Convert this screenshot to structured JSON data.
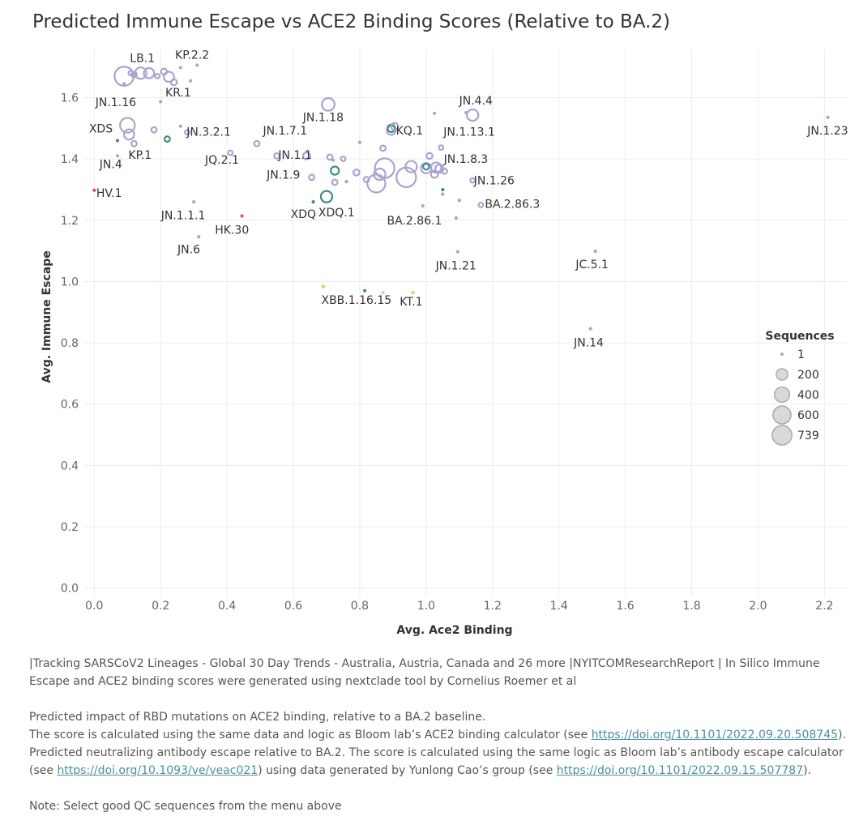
{
  "chart_data": {
    "type": "scatter",
    "title": "Predicted Immune Escape vs ACE2 Binding Scores (Relative to BA.2)",
    "xlabel": "Avg. Ace2 Binding",
    "ylabel": "Avg. Immune Escape",
    "xlim": [
      -0.03,
      2.27
    ],
    "ylim": [
      -0.03,
      1.76
    ],
    "xticks": [
      "0.0",
      "0.2",
      "0.4",
      "0.6",
      "0.8",
      "1.0",
      "1.2",
      "1.4",
      "1.6",
      "1.8",
      "2.0",
      "2.2"
    ],
    "xtick_values": [
      0,
      0.2,
      0.4,
      0.6,
      0.8,
      1.0,
      1.2,
      1.4,
      1.6,
      1.8,
      2.0,
      2.2
    ],
    "yticks": [
      "0.0",
      "0.2",
      "0.4",
      "0.6",
      "0.8",
      "1.0",
      "1.2",
      "1.4",
      "1.6"
    ],
    "ytick_values": [
      0,
      0.2,
      0.4,
      0.6,
      0.8,
      1.0,
      1.2,
      1.4,
      1.6
    ],
    "grid": true,
    "colors": {
      "default": "#a9a3d6",
      "teal": "#3f8f7f",
      "red": "#d05a4e",
      "yellow": "#f2c94c",
      "pink": "#f4b6c2"
    },
    "size_legend": {
      "title": "Sequences",
      "placement": "right",
      "entries": [
        {
          "label": "1",
          "value": 1
        },
        {
          "label": "200",
          "value": 200
        },
        {
          "label": "400",
          "value": 400
        },
        {
          "label": "600",
          "value": 600
        },
        {
          "label": "739",
          "value": 739
        }
      ]
    },
    "points": [
      {
        "x": 0.09,
        "y": 1.67,
        "size": 700,
        "color": "default"
      },
      {
        "x": 0.11,
        "y": 1.68,
        "size": 10,
        "color": "default"
      },
      {
        "x": 0.12,
        "y": 1.675,
        "size": 20,
        "color": "default"
      },
      {
        "x": 0.14,
        "y": 1.68,
        "size": 200,
        "color": "default"
      },
      {
        "x": 0.165,
        "y": 1.68,
        "size": 150,
        "color": "default"
      },
      {
        "x": 0.19,
        "y": 1.67,
        "size": 10,
        "color": "default"
      },
      {
        "x": 0.21,
        "y": 1.685,
        "size": 30,
        "color": "default"
      },
      {
        "x": 0.225,
        "y": 1.668,
        "size": 150,
        "color": "default"
      },
      {
        "x": 0.24,
        "y": 1.65,
        "size": 30,
        "color": "default"
      },
      {
        "x": 0.09,
        "y": 1.645,
        "size": 5,
        "color": "default"
      },
      {
        "x": 0.26,
        "y": 1.698,
        "size": 5,
        "color": "default"
      },
      {
        "x": 0.29,
        "y": 1.655,
        "size": 5,
        "color": "default"
      },
      {
        "x": 0.31,
        "y": 1.706,
        "size": 5,
        "color": "default"
      },
      {
        "x": 0.2,
        "y": 1.587,
        "size": 5,
        "color": "default"
      },
      {
        "x": 0.1,
        "y": 1.51,
        "size": 380,
        "color": "default"
      },
      {
        "x": 0.105,
        "y": 1.48,
        "size": 150,
        "color": "default"
      },
      {
        "x": 0.07,
        "y": 1.46,
        "size": 8,
        "color": "teal"
      },
      {
        "x": 0.12,
        "y": 1.45,
        "size": 20,
        "color": "default"
      },
      {
        "x": 0.18,
        "y": 1.495,
        "size": 20,
        "color": "default"
      },
      {
        "x": 0.22,
        "y": 1.465,
        "size": 20,
        "color": "teal"
      },
      {
        "x": 0.26,
        "y": 1.507,
        "size": 5,
        "color": "default"
      },
      {
        "x": 0.28,
        "y": 1.487,
        "size": 10,
        "color": "default"
      },
      {
        "x": 0.07,
        "y": 1.41,
        "size": 5,
        "color": "default"
      },
      {
        "x": 0.0,
        "y": 1.298,
        "size": 8,
        "color": "red"
      },
      {
        "x": 0.41,
        "y": 1.42,
        "size": 10,
        "color": "default"
      },
      {
        "x": 0.49,
        "y": 1.45,
        "size": 20,
        "color": "default"
      },
      {
        "x": 0.3,
        "y": 1.26,
        "size": 5,
        "color": "default"
      },
      {
        "x": 0.315,
        "y": 1.146,
        "size": 5,
        "color": "default"
      },
      {
        "x": 0.445,
        "y": 1.214,
        "size": 8,
        "color": "red"
      },
      {
        "x": 0.55,
        "y": 1.41,
        "size": 20,
        "color": "default"
      },
      {
        "x": 0.64,
        "y": 1.41,
        "size": 50,
        "color": "default"
      },
      {
        "x": 0.655,
        "y": 1.34,
        "size": 20,
        "color": "default"
      },
      {
        "x": 0.66,
        "y": 1.26,
        "size": 8,
        "color": "teal"
      },
      {
        "x": 0.7,
        "y": 1.277,
        "size": 200,
        "color": "teal"
      },
      {
        "x": 0.705,
        "y": 1.578,
        "size": 260,
        "color": "default"
      },
      {
        "x": 0.72,
        "y": 1.396,
        "size": 5,
        "color": "default"
      },
      {
        "x": 0.725,
        "y": 1.362,
        "size": 80,
        "color": "teal"
      },
      {
        "x": 0.725,
        "y": 1.324,
        "size": 20,
        "color": "default"
      },
      {
        "x": 0.75,
        "y": 1.4,
        "size": 10,
        "color": "default"
      },
      {
        "x": 0.71,
        "y": 1.406,
        "size": 20,
        "color": "default"
      },
      {
        "x": 0.76,
        "y": 1.326,
        "size": 5,
        "color": "default"
      },
      {
        "x": 0.79,
        "y": 1.356,
        "size": 30,
        "color": "default"
      },
      {
        "x": 0.8,
        "y": 1.454,
        "size": 5,
        "color": "default"
      },
      {
        "x": 0.82,
        "y": 1.333,
        "size": 20,
        "color": "default"
      },
      {
        "x": 0.86,
        "y": 1.35,
        "size": 200,
        "color": "default"
      },
      {
        "x": 0.85,
        "y": 1.32,
        "size": 600,
        "color": "default"
      },
      {
        "x": 0.875,
        "y": 1.37,
        "size": 739,
        "color": "default"
      },
      {
        "x": 0.87,
        "y": 1.435,
        "size": 20,
        "color": "default"
      },
      {
        "x": 0.895,
        "y": 1.493,
        "size": 100,
        "color": "default"
      },
      {
        "x": 0.895,
        "y": 1.5,
        "size": 60,
        "color": "teal"
      },
      {
        "x": 0.905,
        "y": 1.506,
        "size": 50,
        "color": "default"
      },
      {
        "x": 0.94,
        "y": 1.34,
        "size": 739,
        "color": "default"
      },
      {
        "x": 0.955,
        "y": 1.375,
        "size": 200,
        "color": "default"
      },
      {
        "x": 0.99,
        "y": 1.247,
        "size": 5,
        "color": "default"
      },
      {
        "x": 1.0,
        "y": 1.37,
        "size": 150,
        "color": "default"
      },
      {
        "x": 1.0,
        "y": 1.375,
        "size": 30,
        "color": "teal"
      },
      {
        "x": 1.01,
        "y": 1.41,
        "size": 30,
        "color": "default"
      },
      {
        "x": 1.025,
        "y": 1.549,
        "size": 5,
        "color": "default"
      },
      {
        "x": 1.025,
        "y": 1.35,
        "size": 50,
        "color": "default"
      },
      {
        "x": 1.03,
        "y": 1.372,
        "size": 150,
        "color": "default"
      },
      {
        "x": 1.04,
        "y": 1.368,
        "size": 80,
        "color": "default"
      },
      {
        "x": 1.045,
        "y": 1.437,
        "size": 10,
        "color": "default"
      },
      {
        "x": 1.05,
        "y": 1.3,
        "size": 8,
        "color": "teal"
      },
      {
        "x": 1.05,
        "y": 1.285,
        "size": 5,
        "color": "default"
      },
      {
        "x": 1.055,
        "y": 1.36,
        "size": 20,
        "color": "default"
      },
      {
        "x": 1.09,
        "y": 1.207,
        "size": 5,
        "color": "default"
      },
      {
        "x": 1.095,
        "y": 1.097,
        "size": 5,
        "color": "default"
      },
      {
        "x": 1.1,
        "y": 1.265,
        "size": 5,
        "color": "default"
      },
      {
        "x": 1.12,
        "y": 1.551,
        "size": 5,
        "color": "default"
      },
      {
        "x": 1.14,
        "y": 1.543,
        "size": 200,
        "color": "default"
      },
      {
        "x": 1.14,
        "y": 1.33,
        "size": 10,
        "color": "default"
      },
      {
        "x": 1.165,
        "y": 1.25,
        "size": 10,
        "color": "default"
      },
      {
        "x": 0.69,
        "y": 0.984,
        "size": 5,
        "color": "yellow"
      },
      {
        "x": 0.815,
        "y": 0.97,
        "size": 5,
        "color": "teal"
      },
      {
        "x": 0.87,
        "y": 0.964,
        "size": 5,
        "color": "pink"
      },
      {
        "x": 0.96,
        "y": 0.964,
        "size": 5,
        "color": "yellow"
      },
      {
        "x": 1.495,
        "y": 0.846,
        "size": 5,
        "color": "default"
      },
      {
        "x": 1.51,
        "y": 1.099,
        "size": 5,
        "color": "default"
      },
      {
        "x": 2.21,
        "y": 1.536,
        "size": 5,
        "color": "default"
      }
    ],
    "labels": [
      {
        "text": "LB.1",
        "x": 0.145,
        "y": 1.717,
        "anchor": "middle"
      },
      {
        "text": "KP.2.2",
        "x": 0.295,
        "y": 1.727,
        "anchor": "middle"
      },
      {
        "text": "KR.1",
        "x": 0.253,
        "y": 1.604,
        "anchor": "middle"
      },
      {
        "text": "JN.1.16",
        "x": 0.065,
        "y": 1.572,
        "anchor": "middle"
      },
      {
        "text": "XDS",
        "x": 0.02,
        "y": 1.486,
        "anchor": "middle"
      },
      {
        "text": "KP.1",
        "x": 0.138,
        "y": 1.4,
        "anchor": "middle"
      },
      {
        "text": "JN.4",
        "x": 0.05,
        "y": 1.37,
        "anchor": "middle"
      },
      {
        "text": "HV.1",
        "x": 0.045,
        "y": 1.276,
        "anchor": "middle"
      },
      {
        "text": "JN.3.2.1",
        "x": 0.345,
        "y": 1.476,
        "anchor": "middle"
      },
      {
        "text": "JQ.2.1",
        "x": 0.385,
        "y": 1.384,
        "anchor": "middle"
      },
      {
        "text": "JN.1.7.1",
        "x": 0.575,
        "y": 1.48,
        "anchor": "middle"
      },
      {
        "text": "JN.1.18",
        "x": 0.69,
        "y": 1.524,
        "anchor": "middle"
      },
      {
        "text": "JN.1.1",
        "x": 0.605,
        "y": 1.4,
        "anchor": "middle"
      },
      {
        "text": "JN.1.9",
        "x": 0.57,
        "y": 1.336,
        "anchor": "middle"
      },
      {
        "text": "JN.1.1.1",
        "x": 0.268,
        "y": 1.204,
        "anchor": "middle"
      },
      {
        "text": "HK.30",
        "x": 0.415,
        "y": 1.156,
        "anchor": "middle"
      },
      {
        "text": "JN.6",
        "x": 0.285,
        "y": 1.093,
        "anchor": "middle"
      },
      {
        "text": "XDQ",
        "x": 0.63,
        "y": 1.207,
        "anchor": "middle"
      },
      {
        "text": "XDQ.1",
        "x": 0.73,
        "y": 1.213,
        "anchor": "middle"
      },
      {
        "text": "KQ.1",
        "x": 0.95,
        "y": 1.48,
        "anchor": "middle"
      },
      {
        "text": "JN.4.4",
        "x": 1.15,
        "y": 1.578,
        "anchor": "middle"
      },
      {
        "text": "JN.1.13.1",
        "x": 1.13,
        "y": 1.476,
        "anchor": "middle"
      },
      {
        "text": "JN.1.8.3",
        "x": 1.12,
        "y": 1.387,
        "anchor": "middle"
      },
      {
        "text": "JN.1.26",
        "x": 1.205,
        "y": 1.317,
        "anchor": "middle"
      },
      {
        "text": "BA.2.86.3",
        "x": 1.26,
        "y": 1.24,
        "anchor": "middle"
      },
      {
        "text": "BA.2.86.1",
        "x": 0.965,
        "y": 1.186,
        "anchor": "middle"
      },
      {
        "text": "JN.1.21",
        "x": 1.09,
        "y": 1.04,
        "anchor": "middle"
      },
      {
        "text": "JC.5.1",
        "x": 1.5,
        "y": 1.043,
        "anchor": "middle"
      },
      {
        "text": "XBB.1.16.15",
        "x": 0.79,
        "y": 0.927,
        "anchor": "middle"
      },
      {
        "text": "KT.1",
        "x": 0.955,
        "y": 0.922,
        "anchor": "middle"
      },
      {
        "text": "JN.14",
        "x": 1.49,
        "y": 0.788,
        "anchor": "middle"
      },
      {
        "text": "JN.1.23",
        "x": 2.21,
        "y": 1.48,
        "anchor": "middle"
      }
    ]
  },
  "notes": {
    "line1": "|Tracking SARSCoV2 Lineages - Global 30 Day Trends - Australia, Austria, Canada and 26 more |NYITCOMResearchReport | In Silico Immune Escape and ACE2 binding scores were generated using nextclade tool by Cornelius Roemer et al",
    "ace2_intro": "Predicted impact of RBD mutations on ACE2 binding, relative to a BA.2 baseline.",
    "ace2_text": "The score is calculated using the same data and logic as Bloom lab’s ACE2 binding calculator (see ",
    "ace2_link": "https://doi.org/10.1101/2022.09.20.508745",
    "ace2_end": ").",
    "escape_text": "Predicted neutralizing antibody escape relative to BA.2. The score is calculated using the same logic as Bloom lab’s antibody escape calculator (see ",
    "escape_link1": "https://doi.org/10.1093/ve/veac021",
    "escape_mid": ") using data generated by Yunlong Cao’s group (see ",
    "escape_link2": "https://doi.org/10.1101/2022.09.15.507787",
    "escape_end": ").",
    "qc_note": "Note: Select good QC sequences from the menu above"
  }
}
